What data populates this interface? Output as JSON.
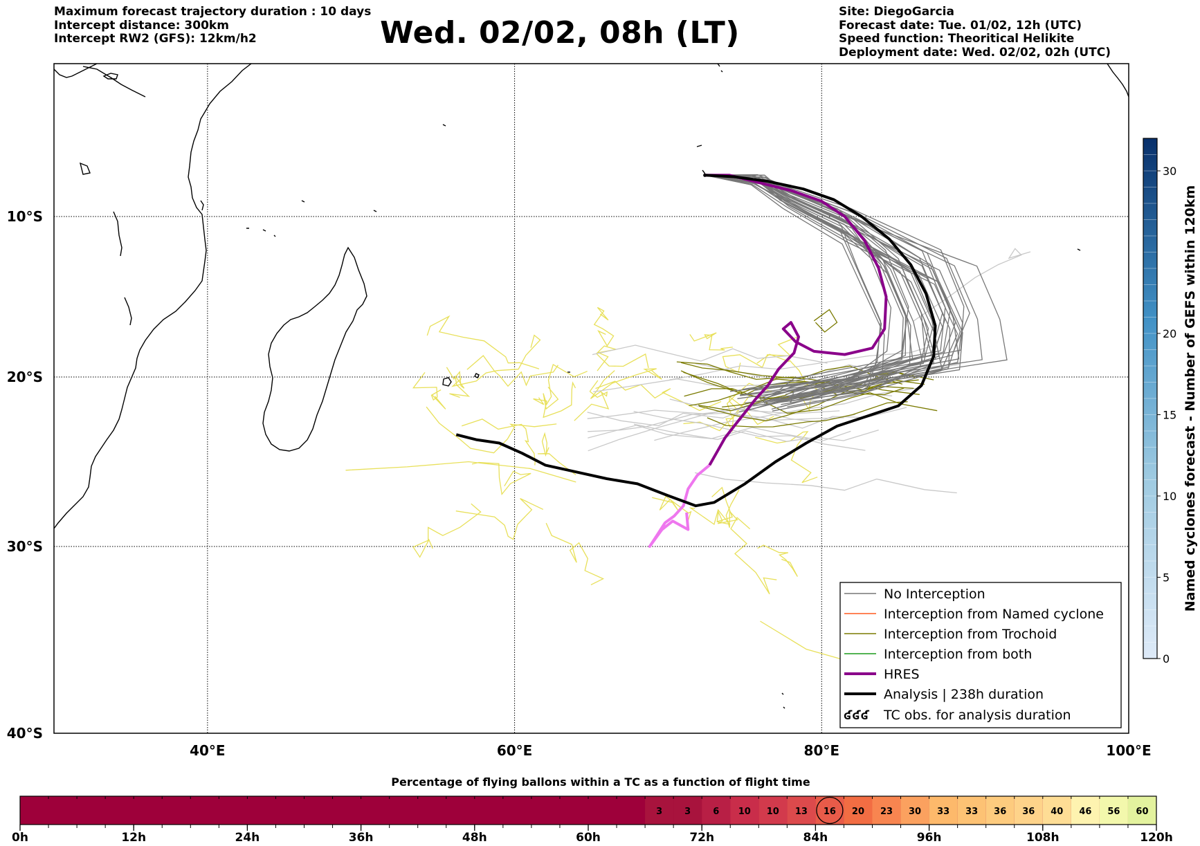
{
  "header": {
    "left_lines": [
      "Maximum forecast trajectory duration : 10 days",
      "Intercept distance: 300km",
      "Intercept RW2 (GFS):  12km/h2"
    ],
    "title": "Wed. 02/02, 08h (LT)",
    "right_lines": [
      "Site: DiegoGarcia",
      "Forecast date: Tue. 01/02, 12h (UTC)",
      "Speed function: Theoritical Helikite",
      "Deployment date: Wed. 02/02, 02h (UTC)"
    ]
  },
  "map": {
    "lon_range": [
      30,
      100
    ],
    "lat_range": [
      -40,
      0
    ],
    "lon_ticks": [
      {
        "value": 40,
        "label": "40°E"
      },
      {
        "value": 60,
        "label": "60°E"
      },
      {
        "value": 80,
        "label": "80°E"
      },
      {
        "value": 100,
        "label": "100°E"
      }
    ],
    "lat_ticks": [
      {
        "value": -10,
        "label": "10°S"
      },
      {
        "value": -20,
        "label": "20°S"
      },
      {
        "value": -30,
        "label": "30°S"
      },
      {
        "value": -40,
        "label": "40°S"
      }
    ],
    "grid": true,
    "launch_site": {
      "name": "DiegoGarcia",
      "lon": 72.4,
      "lat": -7.3
    },
    "colors": {
      "no_interception": "#777777",
      "named_cyclone": "#ff5a1f",
      "trochoid": "#7a7a00",
      "both": "#1a9a1a",
      "hres": "#8a008a",
      "hres_late": "#ee77ee",
      "analysis": "#000000",
      "yellow_members": "#e8e05a",
      "light_gray_members": "#c8c8c8"
    },
    "analysis_track": [
      [
        56.2,
        -23.4
      ],
      [
        57.5,
        -23.7
      ],
      [
        59,
        -23.9
      ],
      [
        60.5,
        -24.5
      ],
      [
        62,
        -25.2
      ],
      [
        64,
        -25.6
      ],
      [
        66,
        -26.0
      ],
      [
        68,
        -26.3
      ],
      [
        70,
        -27.0
      ],
      [
        71.8,
        -27.6
      ],
      [
        73,
        -27.4
      ],
      [
        75,
        -26.3
      ],
      [
        77,
        -25.0
      ],
      [
        79,
        -23.9
      ],
      [
        81,
        -22.9
      ],
      [
        83,
        -22.3
      ],
      [
        85,
        -21.7
      ],
      [
        86.5,
        -20.5
      ],
      [
        87.3,
        -18.7
      ],
      [
        87.4,
        -16.8
      ],
      [
        86.8,
        -14.8
      ],
      [
        85.8,
        -13.0
      ],
      [
        84.4,
        -11.4
      ],
      [
        82.6,
        -10.0
      ],
      [
        80.8,
        -8.9
      ],
      [
        78.8,
        -8.2
      ],
      [
        76.5,
        -7.7
      ],
      [
        74.3,
        -7.4
      ],
      [
        72.4,
        -7.3
      ]
    ],
    "hres_track": [
      [
        72.4,
        -7.3
      ],
      [
        74,
        -7.3
      ],
      [
        76,
        -7.8
      ],
      [
        78,
        -8.3
      ],
      [
        80,
        -9.0
      ],
      [
        81.5,
        -10.0
      ],
      [
        82.8,
        -11.5
      ],
      [
        83.7,
        -13.2
      ],
      [
        84.2,
        -15.0
      ],
      [
        84.1,
        -17.0
      ],
      [
        83.3,
        -18.2
      ],
      [
        81.5,
        -18.6
      ],
      [
        79.5,
        -18.4
      ],
      [
        78.3,
        -17.8
      ],
      [
        77.5,
        -17.0
      ],
      [
        78,
        -16.6
      ],
      [
        78.5,
        -17.5
      ],
      [
        78.2,
        -18.5
      ],
      [
        77.2,
        -19.5
      ],
      [
        76.5,
        -20.5
      ],
      [
        75.7,
        -21.3
      ],
      [
        75,
        -22.1
      ],
      [
        74.3,
        -22.9
      ],
      [
        73.7,
        -23.6
      ],
      [
        73.2,
        -24.4
      ],
      [
        72.7,
        -25.2
      ]
    ],
    "hres_late_track": [
      [
        72.7,
        -25.2
      ],
      [
        71.9,
        -25.8
      ],
      [
        71.3,
        -26.6
      ],
      [
        71.0,
        -27.6
      ],
      [
        70.4,
        -28.2
      ],
      [
        69.8,
        -28.6
      ],
      [
        69.3,
        -29.3
      ],
      [
        68.8,
        -30.0
      ],
      [
        69.6,
        -29.0
      ],
      [
        70.3,
        -28.5
      ],
      [
        71.3,
        -29.0
      ],
      [
        71.2,
        -28.0
      ]
    ]
  },
  "legend": {
    "items": [
      {
        "label": "No Interception",
        "style": "thin-gray"
      },
      {
        "label": "Interception from Named cyclone",
        "style": "thin-orange"
      },
      {
        "label": "Interception from Trochoid",
        "style": "thin-olive"
      },
      {
        "label": "Interception from both",
        "style": "thin-green"
      },
      {
        "label": "HRES",
        "style": "thick-purple"
      },
      {
        "label": "Analysis | 238h duration",
        "style": "thick-black"
      },
      {
        "label": "TC obs. for analysis duration",
        "style": "tc-symbol",
        "symbol": "ʛʛʛ"
      }
    ]
  },
  "colorbar_right": {
    "label": "Named cyclones forecast - Number of GEFS within 120km",
    "range": [
      0,
      32
    ],
    "ticks": [
      {
        "value": 0,
        "label": "0"
      },
      {
        "value": 5,
        "label": "5"
      },
      {
        "value": 10,
        "label": "10"
      },
      {
        "value": 15,
        "label": "15"
      },
      {
        "value": 20,
        "label": "20"
      },
      {
        "value": 30,
        "label": "30"
      }
    ],
    "color_low": "#deeaf8",
    "color_high": "#08306b"
  },
  "bottom_bar": {
    "title": "Percentage of flying ballons within a TC as a function of flight time",
    "hour_ticks": [
      "0h",
      "12h",
      "24h",
      "36h",
      "48h",
      "60h",
      "72h",
      "84h",
      "96h",
      "108h",
      "120h"
    ],
    "total_hours": 120,
    "base_color": "#9e003a",
    "cells": [
      {
        "start_hour": 66,
        "value": 3,
        "color": "#a8133d"
      },
      {
        "start_hour": 69,
        "value": 3,
        "color": "#a8133d"
      },
      {
        "start_hour": 72,
        "value": 6,
        "color": "#b81f45"
      },
      {
        "start_hour": 75,
        "value": 10,
        "color": "#c92d4a"
      },
      {
        "start_hour": 78,
        "value": 10,
        "color": "#d23a4c"
      },
      {
        "start_hour": 81,
        "value": 13,
        "color": "#dc4a4c"
      },
      {
        "start_hour": 84,
        "value": 16,
        "color": "#e85b49",
        "circled": true
      },
      {
        "start_hour": 87,
        "value": 20,
        "color": "#f26d43"
      },
      {
        "start_hour": 90,
        "value": 23,
        "color": "#f88550"
      },
      {
        "start_hour": 93,
        "value": 30,
        "color": "#fba15f"
      },
      {
        "start_hour": 96,
        "value": 33,
        "color": "#fdb96b"
      },
      {
        "start_hour": 99,
        "value": 33,
        "color": "#fdc274"
      },
      {
        "start_hour": 102,
        "value": 36,
        "color": "#fdcb7e"
      },
      {
        "start_hour": 105,
        "value": 36,
        "color": "#fed38a"
      },
      {
        "start_hour": 108,
        "value": 40,
        "color": "#fedd95"
      },
      {
        "start_hour": 111,
        "value": 46,
        "color": "#fef3b0"
      },
      {
        "start_hour": 114,
        "value": 56,
        "color": "#f3f8ac"
      },
      {
        "start_hour": 117,
        "value": 60,
        "color": "#e3f29e"
      }
    ]
  }
}
